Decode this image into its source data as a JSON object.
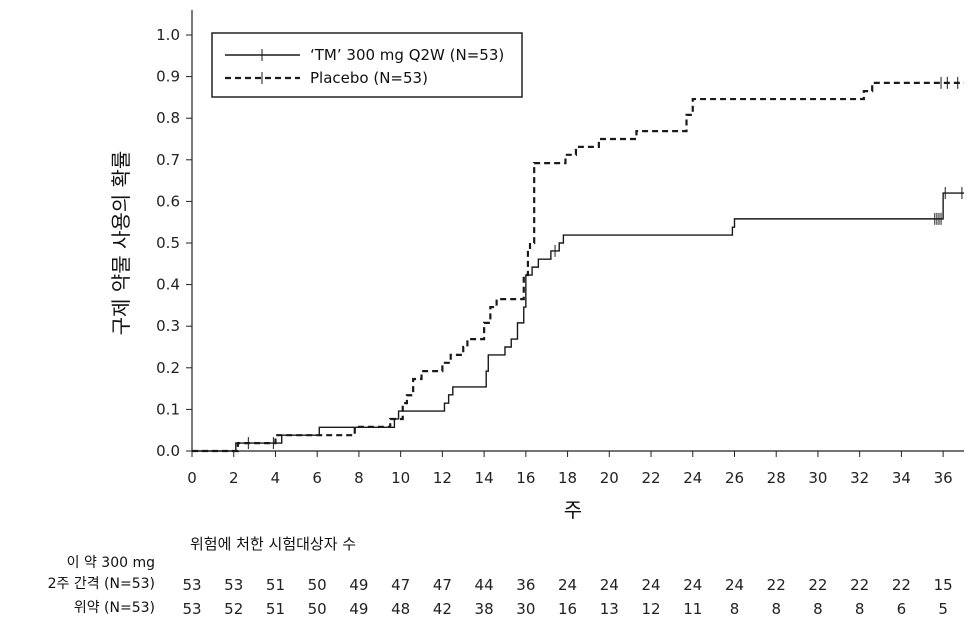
{
  "chart_data": {
    "type": "line",
    "step": true,
    "xlabel": "주",
    "ylabel": "구제 약물 사용의 확률",
    "xlim": [
      0,
      37
    ],
    "ylim": [
      0,
      1.0
    ],
    "xticks": [
      "0",
      "2",
      "4",
      "6",
      "8",
      "10",
      "12",
      "14",
      "16",
      "18",
      "20",
      "22",
      "24",
      "26",
      "28",
      "30",
      "32",
      "34",
      "36"
    ],
    "yticks": [
      "0.0",
      "0.1",
      "0.2",
      "0.3",
      "0.4",
      "0.5",
      "0.6",
      "0.7",
      "0.8",
      "0.9",
      "1.0"
    ],
    "legend_position": "top-left",
    "series": [
      {
        "name": "‘TM’ 300 mg Q2W (N=53)",
        "style": "solid",
        "color": "#1a1a1a",
        "points": [
          [
            0,
            0
          ],
          [
            2.1,
            0.019
          ],
          [
            4.3,
            0.038
          ],
          [
            6.1,
            0.057
          ],
          [
            9.7,
            0.077
          ],
          [
            9.9,
            0.096
          ],
          [
            12.1,
            0.115
          ],
          [
            12.3,
            0.135
          ],
          [
            12.5,
            0.154
          ],
          [
            14.1,
            0.192
          ],
          [
            14.2,
            0.231
          ],
          [
            15.0,
            0.25
          ],
          [
            15.3,
            0.269
          ],
          [
            15.6,
            0.308
          ],
          [
            15.9,
            0.346
          ],
          [
            16.0,
            0.423
          ],
          [
            16.3,
            0.442
          ],
          [
            16.6,
            0.461
          ],
          [
            17.2,
            0.481
          ],
          [
            17.6,
            0.5
          ],
          [
            17.8,
            0.519
          ],
          [
            25.9,
            0.538
          ],
          [
            26.0,
            0.558
          ],
          [
            36.0,
            0.62
          ],
          [
            37.0,
            0.62
          ]
        ],
        "censored_x": [
          2.7,
          3.9,
          17.4,
          35.6,
          35.7,
          35.8,
          35.9,
          36.1,
          36.9
        ]
      },
      {
        "name": "Placebo (N=53)",
        "style": "dashed",
        "color": "#1a1a1a",
        "points": [
          [
            0,
            0
          ],
          [
            2.2,
            0.019
          ],
          [
            4.0,
            0.038
          ],
          [
            7.8,
            0.058
          ],
          [
            9.5,
            0.077
          ],
          [
            10.1,
            0.115
          ],
          [
            10.3,
            0.134
          ],
          [
            10.6,
            0.173
          ],
          [
            11.0,
            0.192
          ],
          [
            12.0,
            0.212
          ],
          [
            12.4,
            0.231
          ],
          [
            13.0,
            0.25
          ],
          [
            13.2,
            0.269
          ],
          [
            14.0,
            0.308
          ],
          [
            14.3,
            0.346
          ],
          [
            14.6,
            0.365
          ],
          [
            15.9,
            0.423
          ],
          [
            16.1,
            0.481
          ],
          [
            16.2,
            0.5
          ],
          [
            16.4,
            0.692
          ],
          [
            17.9,
            0.712
          ],
          [
            18.4,
            0.731
          ],
          [
            19.5,
            0.75
          ],
          [
            21.3,
            0.769
          ],
          [
            23.7,
            0.808
          ],
          [
            24.0,
            0.846
          ],
          [
            32.2,
            0.865
          ],
          [
            32.6,
            0.885
          ],
          [
            37.0,
            0.885
          ]
        ],
        "censored_x": [
          35.9,
          36.2,
          36.7
        ]
      }
    ]
  },
  "risk_table": {
    "heading": "위험에 처한 시험대상자 수",
    "rows": [
      {
        "label_line1": "이 약 300 mg",
        "label_line2": "2주 간격 (N=53)",
        "values": [
          "53",
          "53",
          "51",
          "50",
          "49",
          "47",
          "47",
          "44",
          "36",
          "24",
          "24",
          "24",
          "24",
          "24",
          "22",
          "22",
          "22",
          "22",
          "15"
        ]
      },
      {
        "label": "위약 (N=53)",
        "values": [
          "53",
          "52",
          "51",
          "50",
          "49",
          "48",
          "42",
          "38",
          "30",
          "16",
          "13",
          "12",
          "11",
          "8",
          "8",
          "8",
          "8",
          "6",
          "5"
        ]
      }
    ]
  }
}
